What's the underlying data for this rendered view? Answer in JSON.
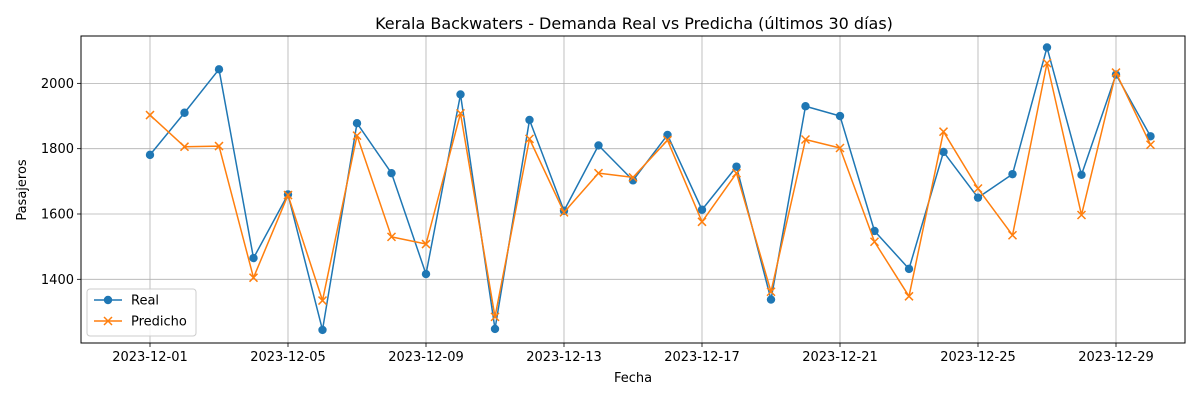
{
  "chart_data": {
    "type": "line",
    "title": "Kerala Backwaters - Demanda Real vs Predicha (últimos 30 días)",
    "xlabel": "Fecha",
    "ylabel": "Pasajeros",
    "x": [
      "2023-12-01",
      "2023-12-02",
      "2023-12-03",
      "2023-12-04",
      "2023-12-05",
      "2023-12-06",
      "2023-12-07",
      "2023-12-08",
      "2023-12-09",
      "2023-12-10",
      "2023-12-11",
      "2023-12-12",
      "2023-12-13",
      "2023-12-14",
      "2023-12-15",
      "2023-12-16",
      "2023-12-17",
      "2023-12-18",
      "2023-12-19",
      "2023-12-20",
      "2023-12-21",
      "2023-12-22",
      "2023-12-23",
      "2023-12-24",
      "2023-12-25",
      "2023-12-26",
      "2023-12-27",
      "2023-12-28",
      "2023-12-29",
      "2023-12-30"
    ],
    "x_ticks": [
      "2023-12-01",
      "2023-12-05",
      "2023-12-09",
      "2023-12-13",
      "2023-12-17",
      "2023-12-21",
      "2023-12-25",
      "2023-12-29"
    ],
    "y_ticks": [
      1400,
      1600,
      1800,
      2000
    ],
    "xlim": [
      "2023-11-29",
      "2023-12-31"
    ],
    "ylim": [
      1205,
      2145
    ],
    "grid": true,
    "legend_position": "lower-left",
    "series": [
      {
        "name": "Real",
        "color": "#1f77b4",
        "marker": "circle",
        "values": [
          1781,
          1910,
          2043,
          1465,
          1660,
          1245,
          1878,
          1725,
          1416,
          1966,
          1248,
          1888,
          1610,
          1810,
          1703,
          1842,
          1613,
          1745,
          1338,
          1930,
          1900,
          1548,
          1432,
          1790,
          1650,
          1722,
          2110,
          1720,
          2027,
          1838
        ]
      },
      {
        "name": "Predicho",
        "color": "#ff7f0e",
        "marker": "x",
        "values": [
          1903,
          1806,
          1808,
          1405,
          1658,
          1335,
          1840,
          1530,
          1508,
          1908,
          1285,
          1830,
          1605,
          1725,
          1712,
          1826,
          1576,
          1725,
          1362,
          1828,
          1802,
          1515,
          1348,
          1852,
          1678,
          1535,
          2062,
          1597,
          2033,
          1812
        ]
      }
    ]
  }
}
